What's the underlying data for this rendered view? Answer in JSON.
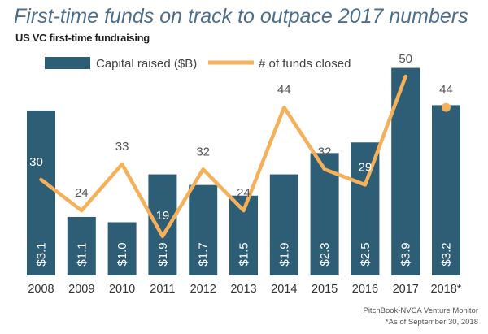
{
  "header": {
    "title": "First-time funds on track to outpace 2017 numbers",
    "subtitle": "US VC first-time fundraising"
  },
  "footer": {
    "source": "PitchBook-NVCA Venture Monitor",
    "note": "*As of September 30, 2018"
  },
  "colors": {
    "bar": "#2e5d76",
    "line": "#f5b05a",
    "title": "#4d6e8b"
  },
  "chart_data": {
    "type": "bar",
    "categories": [
      "2008",
      "2009",
      "2010",
      "2011",
      "2012",
      "2013",
      "2014",
      "2015",
      "2016",
      "2017",
      "2018*"
    ],
    "series": [
      {
        "name": "Capital raised ($B)",
        "type": "bar",
        "values": [
          3.1,
          1.1,
          1.0,
          1.9,
          1.7,
          1.5,
          1.9,
          2.3,
          2.5,
          3.9,
          3.2
        ],
        "labels": [
          "$3.1",
          "$1.1",
          "$1.0",
          "$1.9",
          "$1.7",
          "$1.5",
          "$1.9",
          "$2.3",
          "$2.5",
          "$3.9",
          "$3.2"
        ]
      },
      {
        "name": "# of funds closed",
        "type": "line",
        "values": [
          30,
          24,
          33,
          19,
          32,
          24,
          44,
          32,
          29,
          50,
          44
        ],
        "labels": [
          "30",
          "24",
          "33",
          "19",
          "32",
          "24",
          "44",
          "32",
          "29",
          "50",
          "44"
        ]
      }
    ],
    "legend_position": "top-left",
    "grid": false
  }
}
